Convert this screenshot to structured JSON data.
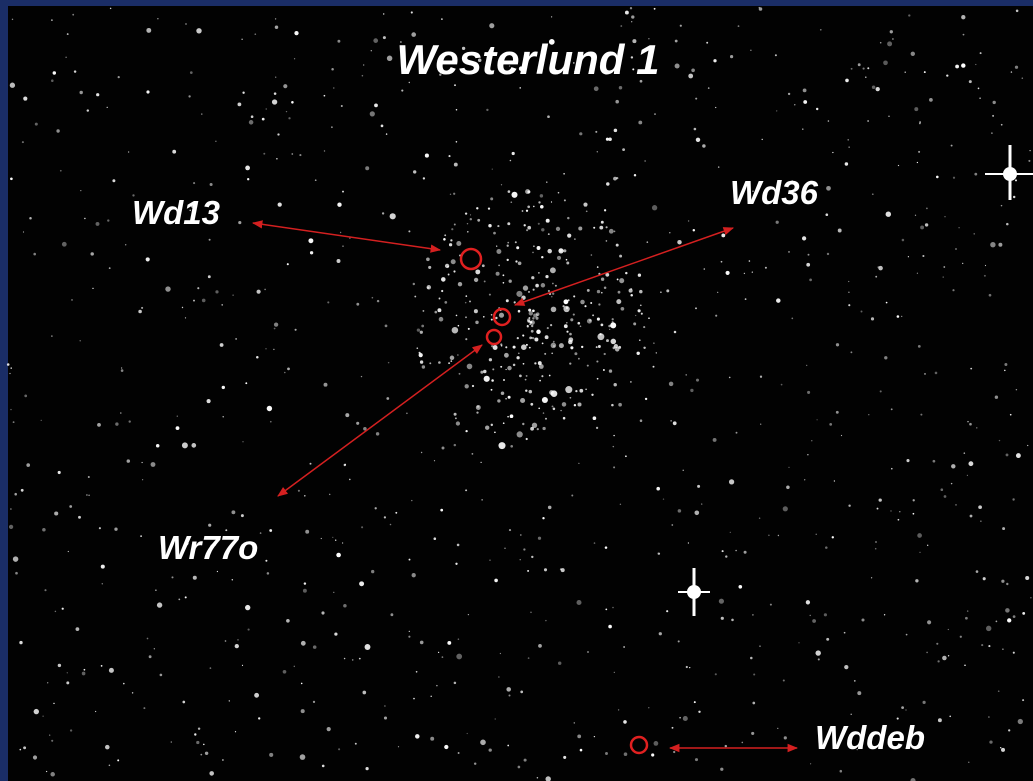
{
  "title": "Westerlund 1",
  "labels": [
    "Wd13",
    "Wd36",
    "Wr77o",
    "Wddeb"
  ]
}
